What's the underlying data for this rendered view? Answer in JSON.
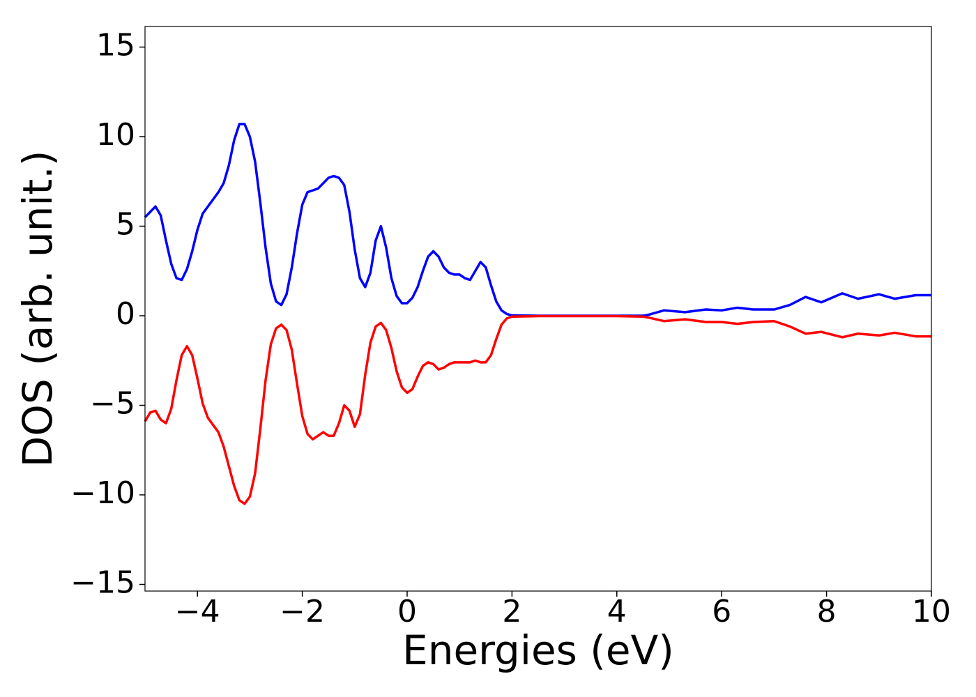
{
  "chart_data": {
    "type": "line",
    "xlabel": "Energies (eV)",
    "ylabel": "DOS (arb. unit.)",
    "x": [
      -5.0,
      -4.9,
      -4.8,
      -4.7,
      -4.6,
      -4.5,
      -4.4,
      -4.3,
      -4.2,
      -4.1,
      -4.0,
      -3.9,
      -3.8,
      -3.7,
      -3.6,
      -3.5,
      -3.4,
      -3.3,
      -3.2,
      -3.1,
      -3.0,
      -2.9,
      -2.8,
      -2.7,
      -2.6,
      -2.5,
      -2.4,
      -2.3,
      -2.2,
      -2.1,
      -2.0,
      -1.9,
      -1.8,
      -1.7,
      -1.6,
      -1.5,
      -1.4,
      -1.3,
      -1.2,
      -1.1,
      -1.0,
      -0.9,
      -0.8,
      -0.7,
      -0.6,
      -0.5,
      -0.4,
      -0.3,
      -0.2,
      -0.1,
      0.0,
      0.1,
      0.2,
      0.3,
      0.4,
      0.5,
      0.6,
      0.7,
      0.8,
      0.9,
      1.0,
      1.1,
      1.2,
      1.3,
      1.4,
      1.5,
      1.6,
      1.7,
      1.8,
      1.9,
      2.0,
      2.5,
      3.0,
      3.5,
      4.0,
      4.5,
      4.6,
      4.9,
      5.3,
      5.7,
      6.0,
      6.3,
      6.6,
      7.0,
      7.3,
      7.6,
      7.9,
      8.3,
      8.6,
      9.0,
      9.3,
      9.7,
      10.0
    ],
    "series": [
      {
        "color": "#0000ff",
        "values": [
          5.5,
          5.8,
          6.1,
          5.6,
          4.2,
          2.9,
          2.1,
          2.0,
          2.6,
          3.6,
          4.8,
          5.7,
          6.1,
          6.5,
          6.9,
          7.4,
          8.4,
          9.8,
          10.7,
          10.7,
          10.0,
          8.6,
          6.3,
          3.8,
          1.8,
          0.8,
          0.6,
          1.2,
          2.7,
          4.6,
          6.2,
          6.9,
          7.0,
          7.1,
          7.4,
          7.7,
          7.8,
          7.7,
          7.3,
          5.8,
          3.7,
          2.1,
          1.6,
          2.4,
          4.2,
          5.0,
          3.8,
          2.1,
          1.1,
          0.7,
          0.7,
          1.0,
          1.6,
          2.5,
          3.3,
          3.6,
          3.3,
          2.7,
          2.4,
          2.3,
          2.3,
          2.1,
          2.0,
          2.5,
          3.0,
          2.7,
          1.7,
          0.8,
          0.3,
          0.1,
          0.02,
          0,
          0,
          0,
          0,
          0,
          0.05,
          0.3,
          0.2,
          0.35,
          0.3,
          0.45,
          0.35,
          0.35,
          0.6,
          1.05,
          0.75,
          1.25,
          0.95,
          1.2,
          0.95,
          1.15,
          1.15
        ]
      },
      {
        "color": "#ff0000",
        "values": [
          -5.9,
          -5.4,
          -5.3,
          -5.8,
          -6.0,
          -5.2,
          -3.6,
          -2.2,
          -1.7,
          -2.2,
          -3.5,
          -4.9,
          -5.7,
          -6.1,
          -6.5,
          -7.3,
          -8.4,
          -9.5,
          -10.3,
          -10.5,
          -10.1,
          -8.8,
          -6.3,
          -3.6,
          -1.6,
          -0.7,
          -0.5,
          -0.8,
          -1.9,
          -3.8,
          -5.6,
          -6.6,
          -6.9,
          -6.7,
          -6.5,
          -6.7,
          -6.7,
          -6.0,
          -5.0,
          -5.3,
          -6.2,
          -5.5,
          -3.3,
          -1.5,
          -0.6,
          -0.4,
          -0.8,
          -1.8,
          -3.1,
          -4.0,
          -4.3,
          -4.1,
          -3.4,
          -2.8,
          -2.6,
          -2.7,
          -3.0,
          -2.9,
          -2.7,
          -2.6,
          -2.6,
          -2.6,
          -2.6,
          -2.5,
          -2.6,
          -2.6,
          -2.2,
          -1.3,
          -0.5,
          -0.15,
          -0.05,
          -0.02,
          -0.02,
          -0.02,
          -0.02,
          -0.05,
          -0.1,
          -0.3,
          -0.2,
          -0.35,
          -0.35,
          -0.45,
          -0.35,
          -0.3,
          -0.6,
          -1.0,
          -0.9,
          -1.2,
          -1.0,
          -1.1,
          -0.95,
          -1.15,
          -1.15
        ]
      }
    ],
    "xlim": [
      -5,
      10
    ],
    "ylim": [
      -15.37,
      16.15
    ],
    "xticks": [
      {
        "value": -4,
        "label": "−4"
      },
      {
        "value": -2,
        "label": "−2"
      },
      0,
      2,
      4,
      6,
      8,
      10
    ],
    "yticks": [
      {
        "value": -15,
        "label": "−15"
      },
      {
        "value": -10,
        "label": "−10"
      },
      {
        "value": -5,
        "label": "−5"
      },
      0,
      5,
      10,
      15
    ]
  }
}
